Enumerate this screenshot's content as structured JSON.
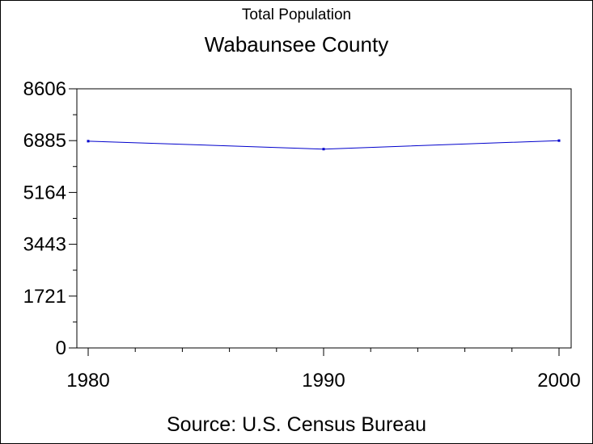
{
  "chart_data": {
    "type": "line",
    "title": "Total Population",
    "subtitle": "Wabaunsee County",
    "source": "Source: U.S. Census Bureau",
    "xlabel": "",
    "ylabel": "",
    "x": [
      1980,
      1990,
      2000
    ],
    "x_ticks": [
      "1980",
      "1990",
      "2000"
    ],
    "xlim": [
      1980,
      2000
    ],
    "y_ticks": [
      "0",
      "1721",
      "3443",
      "5164",
      "6885",
      "8606"
    ],
    "ylim": [
      0,
      8606
    ],
    "grid": false,
    "series": [
      {
        "values": [
          6867,
          6603,
          6885
        ]
      }
    ],
    "colors": {
      "line": "#0000cc",
      "marker": "#0000cc",
      "axis": "#000000"
    }
  }
}
